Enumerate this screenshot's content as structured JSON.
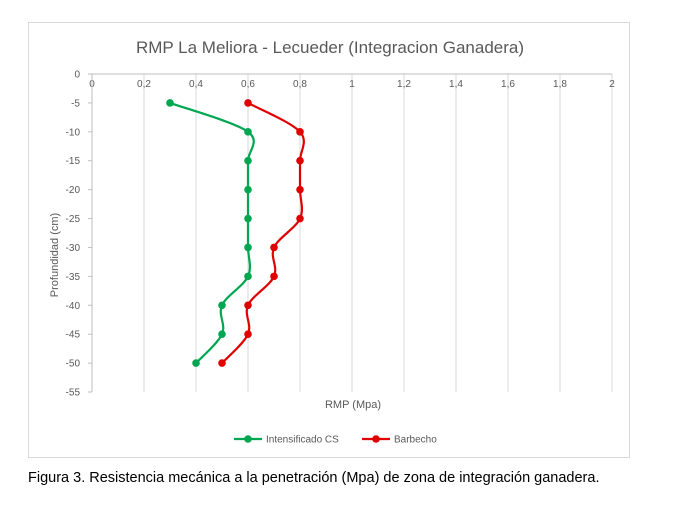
{
  "chart_data": {
    "type": "line",
    "title": "RMP La Meliora - Lecueder (Integracion Ganadera)",
    "xlabel": "RMP (Mpa)",
    "ylabel": "Profundidad (cm)",
    "xlim": [
      0,
      2
    ],
    "ylim": [
      -55,
      0
    ],
    "x_ticks": [
      "0",
      "0,2",
      "0,4",
      "0,6",
      "0,8",
      "1",
      "1,2",
      "1,4",
      "1,6",
      "1,8",
      "2"
    ],
    "y_ticks": [
      "0",
      "-5",
      "-10",
      "-15",
      "-20",
      "-25",
      "-30",
      "-35",
      "-40",
      "-45",
      "-50",
      "-55"
    ],
    "x_axis_position": "top",
    "grid": "vertical",
    "legend_position": "bottom",
    "series": [
      {
        "name": "Intensificado CS",
        "color": "#00a650",
        "points": [
          {
            "x": 0.3,
            "y": -5
          },
          {
            "x": 0.6,
            "y": -10
          },
          {
            "x": 0.6,
            "y": -15
          },
          {
            "x": 0.6,
            "y": -20
          },
          {
            "x": 0.6,
            "y": -25
          },
          {
            "x": 0.6,
            "y": -30
          },
          {
            "x": 0.6,
            "y": -35
          },
          {
            "x": 0.5,
            "y": -40
          },
          {
            "x": 0.5,
            "y": -45
          },
          {
            "x": 0.4,
            "y": -50
          }
        ]
      },
      {
        "name": "Barbecho",
        "color": "#e00000",
        "points": [
          {
            "x": 0.6,
            "y": -5
          },
          {
            "x": 0.8,
            "y": -10
          },
          {
            "x": 0.8,
            "y": -15
          },
          {
            "x": 0.8,
            "y": -20
          },
          {
            "x": 0.8,
            "y": -25
          },
          {
            "x": 0.7,
            "y": -30
          },
          {
            "x": 0.7,
            "y": -35
          },
          {
            "x": 0.6,
            "y": -40
          },
          {
            "x": 0.6,
            "y": -45
          },
          {
            "x": 0.5,
            "y": -50
          }
        ]
      }
    ]
  },
  "caption": "Figura 3. Resistencia mecánica a la penetración (Mpa) de zona de integración ganadera."
}
